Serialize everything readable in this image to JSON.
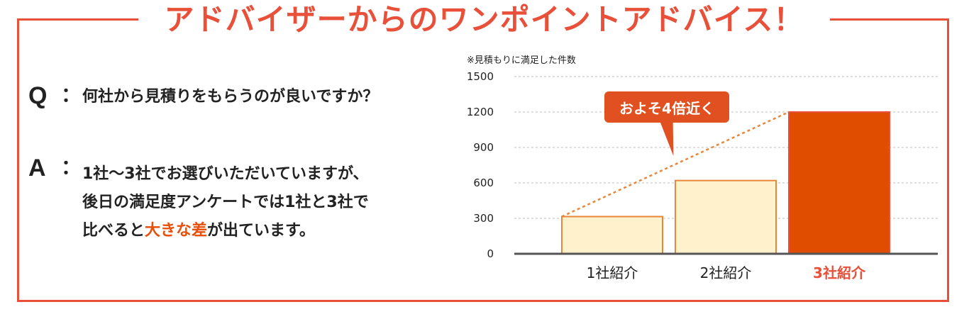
{
  "title": "アドバイザーからのワンポイントアドバイス！",
  "qa": {
    "q_mark": "Q",
    "q_colon": "：",
    "question": "何社から見積りをもらうのが良いですか？",
    "a_mark": "A",
    "a_colon": "：",
    "answer_line1": "1社〜3社でお選びいただいていますが、",
    "answer_line2": "後日の満足度アンケートでは1社と3社で",
    "answer_line3_pre": "比べると",
    "answer_line3_highlight": "大きな差",
    "answer_line3_post": "が出ています。"
  },
  "chart_data": {
    "type": "bar",
    "note": "※見積もりに満足した件数",
    "categories": [
      "1社紹介",
      "2社紹介",
      "3社紹介"
    ],
    "values": [
      315,
      620,
      1200
    ],
    "yticks": [
      "0",
      "300",
      "600",
      "900",
      "1200",
      "1500"
    ],
    "ylim": [
      0,
      1500
    ],
    "grid": true,
    "callout": "およそ4倍近く",
    "colors": {
      "bar_light_fill": "#fef1cb",
      "bar_light_stroke": "#e8873a",
      "bar_highlight_fill": "#e04c00",
      "bar_highlight_stroke": "#e8503a",
      "highlight_label": "#e8503a",
      "trend_line": "#e8873a",
      "callout": "#e05020"
    },
    "highlight_index": 2
  },
  "colors": {
    "accent": "#e8503a",
    "text": "#222222"
  }
}
